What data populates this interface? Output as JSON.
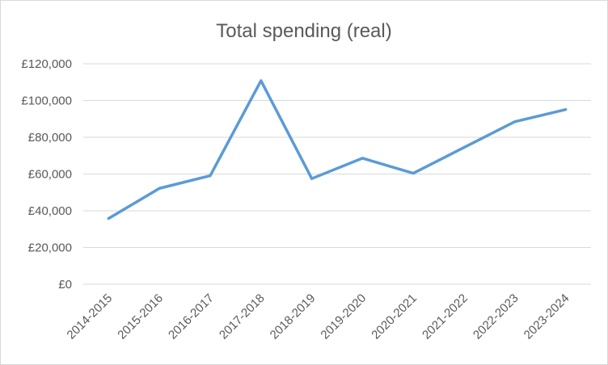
{
  "chart_data": {
    "type": "line",
    "title": "Total spending (real)",
    "xlabel": "",
    "ylabel": "",
    "categories": [
      "2014-2015",
      "2015-2016",
      "2016-2017",
      "2017-2018",
      "2018-2019",
      "2019-2020",
      "2020-2021",
      "2021-2022",
      "2022-2023",
      "2023-2024"
    ],
    "values": [
      35800,
      52200,
      59100,
      110800,
      57500,
      68600,
      60400,
      74500,
      88500,
      95100
    ],
    "ylim": [
      0,
      120000
    ],
    "yticks": [
      0,
      20000,
      40000,
      60000,
      80000,
      100000,
      120000
    ],
    "ytick_labels": [
      "£0",
      "£20,000",
      "£40,000",
      "£60,000",
      "£80,000",
      "£100,000",
      "£120,000"
    ],
    "grid": true,
    "legend": "none",
    "colors": {
      "line": "#5b9bd5",
      "grid": "#d9d9d9",
      "text": "#595959"
    }
  }
}
